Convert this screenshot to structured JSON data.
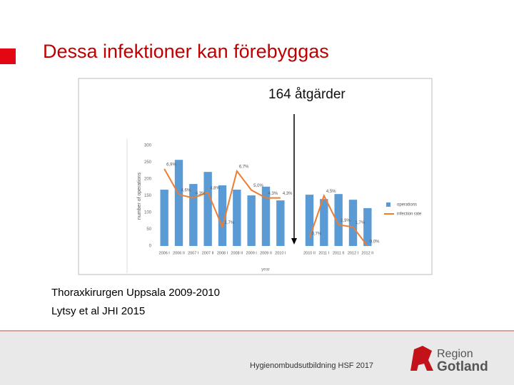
{
  "header": {
    "title": "Dessa infektioner kan förebyggas"
  },
  "chart_data": {
    "type": "bar",
    "title": "164 åtgärder",
    "x_label": "year",
    "y_label": "number of operations",
    "categories": [
      "2006 I",
      "2006 II",
      "2007 I",
      "2007 II",
      "2008 I",
      "2008 II",
      "2009 I",
      "2009 II",
      "2010 I",
      null,
      "2010 II",
      "2011 I",
      "2011 II",
      "2012 I",
      "2012 II"
    ],
    "series": [
      {
        "name": "operations",
        "color": "#5b9bd5",
        "values": [
          168,
          257,
          185,
          221,
          181,
          168,
          151,
          177,
          136,
          null,
          153,
          140,
          155,
          138,
          113
        ]
      },
      {
        "name": "infection rate",
        "color": "#ed7d31",
        "type": "line",
        "axis": "y2",
        "values": [
          6.9,
          4.6,
          4.3,
          4.8,
          1.7,
          6.7,
          5.0,
          4.3,
          4.3,
          null,
          0.7,
          4.5,
          1.9,
          1.7,
          0.0
        ],
        "value_labels": [
          "6,9%",
          "4,6%",
          "4,3%",
          "4,8%",
          "1,7%",
          "6,7%",
          "5,0%",
          "4,3%",
          "4,3%",
          null,
          "0,7%",
          "4,5%",
          "1,9%",
          "1,7%",
          "0,0%"
        ]
      }
    ],
    "ylim": [
      0,
      300
    ],
    "yticks": [
      0,
      50,
      100,
      150,
      200,
      250,
      300
    ],
    "y2lim": [
      0,
      9
    ],
    "legend": "right",
    "grid": false
  },
  "caption": [
    "Thoraxkirurgen Uppsala 2009-2010",
    "Lytsy et al JHI 2015"
  ],
  "footer": {
    "text": "Hygienombudsutbildning HSF 2017",
    "logo": [
      "Region",
      "Gotland"
    ]
  }
}
